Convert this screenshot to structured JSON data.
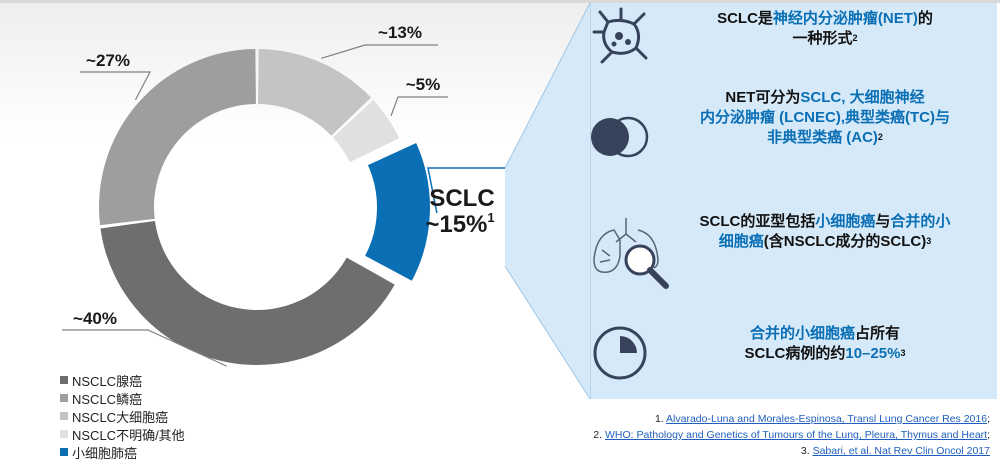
{
  "colors": {
    "accent": "#0a6fb5",
    "panel_bg": "#d6e9f8",
    "icon": "#37435a"
  },
  "chart_data": {
    "type": "donut",
    "title": "",
    "series": [
      {
        "name": "NSCLC腺癌",
        "value": 40,
        "label": "~40%",
        "color": "#6e6e6e"
      },
      {
        "name": "NSCLC鳞癌",
        "value": 27,
        "label": "~27%",
        "color": "#9e9e9e"
      },
      {
        "name": "NSCLC大细胞癌",
        "value": 13,
        "label": "~13%",
        "color": "#c4c4c4"
      },
      {
        "name": "NSCLC不明确/其他",
        "value": 5,
        "label": "~5%",
        "color": "#e0e0e0"
      },
      {
        "name": "小细胞肺癌",
        "value": 15,
        "label": "~15%",
        "color": "#0a6fb5",
        "exploded": true
      }
    ],
    "callout": {
      "line1": "SCLC",
      "line2": "~15%",
      "sup": "1"
    }
  },
  "legend": [
    {
      "label": "NSCLC腺癌",
      "color": "#6e6e6e"
    },
    {
      "label": "NSCLC鳞癌",
      "color": "#9e9e9e"
    },
    {
      "label": "NSCLC大细胞癌",
      "color": "#c4c4c4"
    },
    {
      "label": "NSCLC不明确/其他",
      "color": "#e0e0e0"
    },
    {
      "label": "小细胞肺癌",
      "color": "#0a6fb5"
    }
  ],
  "features": [
    {
      "icon": "neuroendocrine-cell-icon",
      "line1_a": "SCLC是",
      "line1_b": "神经内分泌肿瘤(NET)",
      "line1_c": "的",
      "line2_a": "一种形式",
      "sup": "2"
    },
    {
      "icon": "venn-diagram-icon",
      "line1_a": "NET可分为",
      "line1_b": "SCLC, 大细胞神经",
      "line2_a": "内分泌肿瘤 (LCNEC),典型类癌(TC)与",
      "line3_a": "非典型类癌 (AC)",
      "sup": "2"
    },
    {
      "icon": "lung-magnifier-icon",
      "line1_a": "SCLC的亚型包括",
      "line1_b": "小细胞癌",
      "line1_c": "与",
      "line1_d": "合并的小",
      "line2_a": "细胞癌",
      "line2_b": "(含NSCLC成分的SCLC)",
      "sup": "3"
    },
    {
      "icon": "pie-quarter-icon",
      "line1_a": "合并的小细胞癌",
      "line1_b": "占所有",
      "line2_a": "SCLC病例的约",
      "line2_b": "10–25%",
      "sup": "3"
    }
  ],
  "references": [
    {
      "num": "1.",
      "text": "Alvarado-Luna and Morales-Espinosa, Transl Lung Cancer Res 2016",
      "tail": ";"
    },
    {
      "num": "2.",
      "text": "WHO: Pathology and Genetics of Tumours of the Lung, Pleura, Thymus and Heart",
      "tail": ";"
    },
    {
      "num": "3.",
      "text": "Sabari, et al. Nat Rev Clin Oncol 2017",
      "tail": ""
    }
  ]
}
